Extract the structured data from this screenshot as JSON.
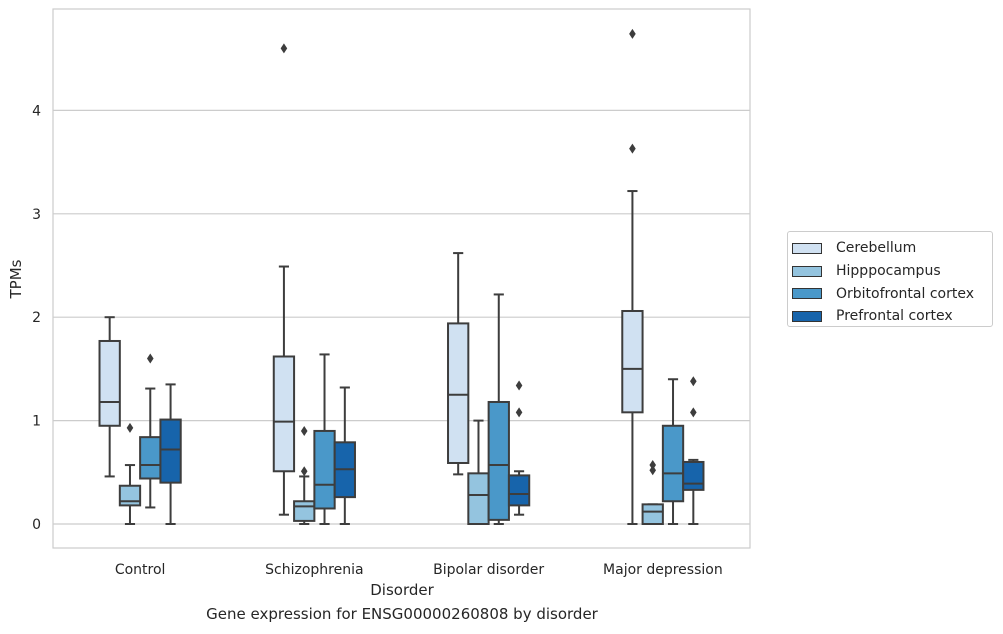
{
  "chart_data": {
    "type": "box",
    "caption": "Gene expression for ENSG00000260808 by disorder",
    "xlabel": "Disorder",
    "ylabel": "TPMs",
    "categories": [
      "Control",
      "Schizophrenia",
      "Bipolar disorder",
      "Major depression"
    ],
    "ylim": [
      -0.23,
      5.0
    ],
    "yticks": [
      0,
      1,
      2,
      3,
      4
    ],
    "grid": "horizontal",
    "legend_placement": "right, outside",
    "series": [
      {
        "name": "Cerebellum",
        "color": "#d0e1f2",
        "boxes": [
          {
            "whislo": 0.46,
            "q1": 0.95,
            "med": 1.18,
            "q3": 1.77,
            "whishi": 2.0,
            "fliers": []
          },
          {
            "whislo": 0.09,
            "q1": 0.51,
            "med": 0.99,
            "q3": 1.62,
            "whishi": 2.49,
            "fliers": [
              4.6
            ]
          },
          {
            "whislo": 0.48,
            "q1": 0.59,
            "med": 1.25,
            "q3": 1.94,
            "whishi": 2.62,
            "fliers": []
          },
          {
            "whislo": 0.0,
            "q1": 1.08,
            "med": 1.5,
            "q3": 2.06,
            "whishi": 3.22,
            "fliers": [
              3.63,
              4.74
            ]
          }
        ]
      },
      {
        "name": "Hipppocampus",
        "color": "#94c4df",
        "boxes": [
          {
            "whislo": 0.0,
            "q1": 0.18,
            "med": 0.22,
            "q3": 0.37,
            "whishi": 0.57,
            "fliers": [
              0.93
            ]
          },
          {
            "whislo": 0.0,
            "q1": 0.03,
            "med": 0.17,
            "q3": 0.22,
            "whishi": 0.46,
            "fliers": [
              0.51,
              0.9
            ]
          },
          {
            "whislo": 0.0,
            "q1": 0.0,
            "med": 0.28,
            "q3": 0.49,
            "whishi": 1.0,
            "fliers": []
          },
          {
            "whislo": 0.0,
            "q1": 0.0,
            "med": 0.12,
            "q3": 0.19,
            "whishi": 0.19,
            "fliers": [
              0.52,
              0.57
            ]
          }
        ]
      },
      {
        "name": "Orbitofrontal cortex",
        "color": "#4a98c9",
        "boxes": [
          {
            "whislo": 0.16,
            "q1": 0.44,
            "med": 0.57,
            "q3": 0.84,
            "whishi": 1.31,
            "fliers": [
              1.6
            ]
          },
          {
            "whislo": 0.0,
            "q1": 0.15,
            "med": 0.38,
            "q3": 0.9,
            "whishi": 1.64,
            "fliers": []
          },
          {
            "whislo": 0.0,
            "q1": 0.04,
            "med": 0.57,
            "q3": 1.18,
            "whishi": 2.22,
            "fliers": []
          },
          {
            "whislo": 0.0,
            "q1": 0.22,
            "med": 0.49,
            "q3": 0.95,
            "whishi": 1.4,
            "fliers": []
          }
        ]
      },
      {
        "name": "Prefrontal cortex",
        "color": "#1764ab",
        "boxes": [
          {
            "whislo": 0.0,
            "q1": 0.4,
            "med": 0.72,
            "q3": 1.01,
            "whishi": 1.35,
            "fliers": []
          },
          {
            "whislo": 0.0,
            "q1": 0.26,
            "med": 0.53,
            "q3": 0.79,
            "whishi": 1.32,
            "fliers": []
          },
          {
            "whislo": 0.09,
            "q1": 0.18,
            "med": 0.29,
            "q3": 0.47,
            "whishi": 0.51,
            "fliers": [
              1.08,
              1.34
            ]
          },
          {
            "whislo": 0.0,
            "q1": 0.33,
            "med": 0.39,
            "q3": 0.6,
            "whishi": 0.62,
            "fliers": [
              1.08,
              1.38
            ]
          }
        ]
      }
    ]
  }
}
